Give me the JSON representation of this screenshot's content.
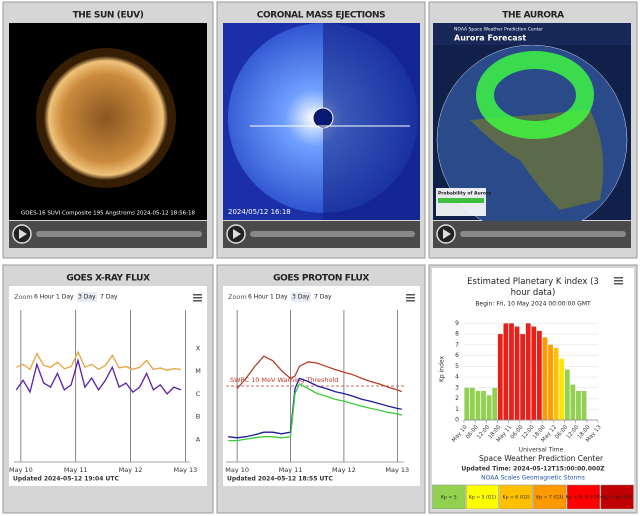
{
  "panels": [
    {
      "title": "THE SUN (EUV)",
      "caption": "GOES-16 SUVI Composite 195 Angstroms 2024-05-12 18:56:18"
    },
    {
      "title": "CORONAL MASS EJECTIONS",
      "caption": "2024/05/12 16:18"
    },
    {
      "title": "THE AURORA",
      "header": "Aurora Forecast",
      "org": "NOAA Space Weather Prediction Center",
      "legend": "Probability of Aurora"
    }
  ],
  "chart_data": [
    {
      "type": "line",
      "title": "GOES X-RAY FLUX",
      "zoom_label": "Zoom",
      "zoom": [
        "6 Hour",
        "1 Day",
        "3 Day",
        "7 Day"
      ],
      "updated": "Updated 2024-05-12 19:04 UTC",
      "log": true,
      "xgrid": true,
      "xlim": [
        -3,
        74
      ],
      "xticks": [
        {
          "value": 0,
          "label": "May 10"
        },
        {
          "value": 24,
          "label": "May 11"
        },
        {
          "value": 48,
          "label": "May 12"
        },
        {
          "value": 72,
          "label": "May 13"
        }
      ],
      "ylim": [
        1e-09,
        0.005
      ],
      "yticks": [
        {
          "value": 0.0001,
          "label": "X"
        },
        {
          "value": 1e-05,
          "label": "M"
        },
        {
          "value": 1e-06,
          "label": "C"
        },
        {
          "value": 1e-07,
          "label": "B"
        },
        {
          "value": 1e-08,
          "label": "A"
        }
      ],
      "x": [
        -2,
        1,
        4,
        7,
        10,
        13,
        16,
        19,
        22,
        25,
        28,
        31,
        34,
        37,
        40,
        43,
        46,
        49,
        52,
        55,
        58,
        61,
        64,
        67,
        70
      ],
      "series": [
        {
          "color": "#e8a33a",
          "values": [
            1.5e-05,
            2e-05,
            1.2e-05,
            6e-05,
            1.8e-05,
            1.5e-05,
            2.5e-05,
            1.3e-05,
            1.6e-05,
            7e-05,
            1.5e-05,
            2e-05,
            1.2e-05,
            1.8e-05,
            5e-05,
            1.4e-05,
            1.6e-05,
            1.2e-05,
            1.5e-05,
            3e-05,
            1.2e-05,
            1.4e-05,
            1.1e-05,
            1.3e-05,
            1.2e-05
          ]
        },
        {
          "color": "#5a1fa8",
          "values": [
            1.5e-06,
            4e-06,
            1.2e-06,
            2e-05,
            3e-06,
            2e-06,
            8e-06,
            1.5e-06,
            2.5e-06,
            3e-05,
            2e-06,
            5e-06,
            1.5e-06,
            4e-06,
            1.5e-05,
            2e-06,
            3e-06,
            1.2e-06,
            2e-06,
            8e-06,
            1.5e-06,
            2.5e-06,
            1e-06,
            2e-06,
            1.5e-06
          ]
        }
      ]
    },
    {
      "type": "line",
      "title": "GOES PROTON FLUX",
      "zoom_label": "Zoom",
      "zoom": [
        "6 Hour",
        "1 Day",
        "3 Day",
        "7 Day"
      ],
      "updated": "Updated 2024-05-12 18:55 UTC",
      "log": true,
      "xgrid": true,
      "xlim": [
        -5,
        75
      ],
      "xticks": [
        {
          "value": 0,
          "label": "May 10"
        },
        {
          "value": 24,
          "label": "May 11"
        },
        {
          "value": 48,
          "label": "May 12"
        },
        {
          "value": 72,
          "label": "May 13"
        }
      ],
      "ylim": [
        0.01,
        10000
      ],
      "threshold": 10,
      "threshold_label": "SWPC 10 MeV Warning Threshold",
      "x": [
        -4,
        0,
        4,
        8,
        12,
        16,
        20,
        24,
        26,
        28,
        32,
        36,
        40,
        44,
        48,
        52,
        56,
        60,
        64,
        68,
        72,
        74
      ],
      "series": [
        {
          "color": "#b5402a",
          "values": [
            null,
            8,
            20,
            60,
            150,
            100,
            40,
            20,
            25,
            60,
            90,
            80,
            60,
            45,
            35,
            28,
            20,
            15,
            12,
            9,
            7,
            6
          ]
        },
        {
          "color": "#1c1c9c",
          "values": [
            0.1,
            0.09,
            0.1,
            0.12,
            0.15,
            0.15,
            0.13,
            0.15,
            8,
            20,
            15,
            10,
            8,
            6,
            5,
            4,
            3,
            2.5,
            2,
            1.6,
            1.3,
            1.2
          ]
        },
        {
          "color": "#3ccc3c",
          "values": [
            0.07,
            0.07,
            0.08,
            0.09,
            0.1,
            0.1,
            0.09,
            0.1,
            5,
            12,
            8,
            5,
            4,
            3,
            2.5,
            2,
            1.6,
            1.3,
            1.1,
            0.9,
            0.8,
            0.7
          ]
        }
      ]
    },
    {
      "type": "bar",
      "title": "Estimated Planetary K index (3 hour data)",
      "begin": "Begin: Fri, 10 May 2024 00:00:00 GMT",
      "y_label": "Kp index",
      "x_label": "Universal Time",
      "credit": "Space Weather Prediction Center",
      "updated": "Updated Time: 2024-05-12T15:00:00.000Z",
      "scales_link": "NOAA Scales Geomagnetic Storms",
      "grid": true,
      "xlim": [
        0,
        72
      ],
      "xticks": [
        {
          "value": 0,
          "label": "May 10"
        },
        {
          "value": 6,
          "label": "06:00"
        },
        {
          "value": 12,
          "label": "12:00"
        },
        {
          "value": 18,
          "label": "18:00"
        },
        {
          "value": 24,
          "label": "May 11"
        },
        {
          "value": 30,
          "label": "06:00"
        },
        {
          "value": 36,
          "label": "12:00"
        },
        {
          "value": 42,
          "label": "18:00"
        },
        {
          "value": 48,
          "label": "May 12"
        },
        {
          "value": 54,
          "label": "06:00"
        },
        {
          "value": 60,
          "label": "12:00"
        },
        {
          "value": 66,
          "label": "18:00"
        },
        {
          "value": 72,
          "label": "May 13"
        }
      ],
      "ylim": [
        0,
        9.5
      ],
      "yticks": [
        0,
        1,
        2,
        3,
        4,
        5,
        6,
        7,
        8,
        9
      ],
      "x": [
        0,
        3,
        6,
        9,
        12,
        15,
        18,
        21,
        24,
        27,
        30,
        33,
        36,
        39,
        42,
        45,
        48,
        51,
        54,
        57,
        60,
        63,
        66,
        69
      ],
      "values": [
        3,
        3,
        2.7,
        2.7,
        2.3,
        3,
        8,
        9,
        9,
        8.7,
        8,
        9,
        8.7,
        8.3,
        7.7,
        7,
        6.7,
        5.7,
        4.7,
        3.3,
        2.7,
        2.7,
        null,
        null
      ],
      "colors": [
        "#92d050",
        "#92d050",
        "#92d050",
        "#92d050",
        "#92d050",
        "#92d050",
        "#e8201a",
        "#e8201a",
        "#e8201a",
        "#e8201a",
        "#e8201a",
        "#e8201a",
        "#e8201a",
        "#e8201a",
        "#ff9900",
        "#ff9900",
        "#ffc000",
        "#ffe600",
        "#92d050",
        "#92d050",
        "#92d050",
        "#92d050",
        null,
        null
      ],
      "legend": [
        {
          "label": "Kp < 5",
          "color": "#92d050"
        },
        {
          "label": "Kp = 5 (G1)",
          "color": "#ffff00"
        },
        {
          "label": "Kp = 6 (G2)",
          "color": "#ffc000"
        },
        {
          "label": "Kp = 7 (G3)",
          "color": "#ff9900"
        },
        {
          "label": "Kp = 8, 9- (G4)",
          "color": "#ff0000"
        },
        {
          "label": "Kp = 9o (G5)",
          "color": "#c00000"
        }
      ]
    }
  ]
}
